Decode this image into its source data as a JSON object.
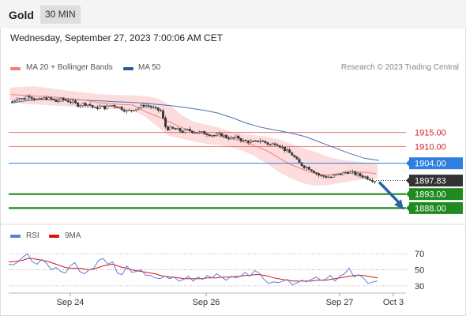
{
  "header": {
    "symbol": "Gold",
    "timeframe": "30 MIN"
  },
  "datetime": "Wednesday, September 27, 2023 7:00:06 AM CET",
  "legend": {
    "bb_label": "MA 20 + Bollinger Bands",
    "ma50_label": "MA 50",
    "rsi_label": "RSI",
    "rsi_ma_label": "9MA",
    "source": "Research © 2023 Trading Central"
  },
  "colors": {
    "bb": "#f08080",
    "bb_fill": "#fbd3d3",
    "ma50": "#4a72b0",
    "resistance": "#e0605a",
    "support": "#1f8a1f",
    "pivot": "#2f7fe0",
    "current": "#333333",
    "arrow": "#2b62a8",
    "rsi": "#5a7fd8",
    "rsi_ma": "#e01010",
    "up_candle": "#ffffff",
    "down_candle": "#333333"
  },
  "chart_data": [
    {
      "type": "candlestick",
      "title": "",
      "y_range": [
        1880.5,
        1935.5
      ],
      "x_labels": [
        "Sep 24",
        "Sep 26",
        "Sep 27",
        "Oct 3"
      ],
      "levels": [
        {
          "label": "1915.00",
          "value": 1915.0,
          "kind": "resistance"
        },
        {
          "label": "1910.00",
          "value": 1910.0,
          "kind": "resistance"
        },
        {
          "label": "1904.00",
          "value": 1904.0,
          "kind": "pivot"
        },
        {
          "label": "1897.83",
          "value": 1897.83,
          "kind": "current"
        },
        {
          "label": "1893.00",
          "value": 1893.0,
          "kind": "support"
        },
        {
          "label": "1888.00",
          "value": 1888.0,
          "kind": "support"
        }
      ],
      "price_path": [
        1926.0,
        1927.5,
        1926.8,
        1928.3,
        1927.0,
        1926.5,
        1927.3,
        1926.8,
        1926.0,
        1926.8,
        1926.3,
        1925.8,
        1924.8,
        1925.3,
        1925.0,
        1923.5,
        1924.3,
        1923.8,
        1924.8,
        1924.3,
        1923.5,
        1922.5,
        1923.3,
        1923.8,
        1924.8,
        1924.3,
        1923.3,
        1922.8,
        1916.5,
        1916.3,
        1916.0,
        1915.3,
        1915.8,
        1915.3,
        1915.0,
        1914.8,
        1914.3,
        1913.8,
        1914.3,
        1913.3,
        1912.8,
        1913.3,
        1912.0,
        1911.8,
        1911.3,
        1912.3,
        1911.5,
        1910.5,
        1911.3,
        1909.8,
        1908.3,
        1907.0,
        1904.5,
        1903.0,
        1902.3,
        1901.0,
        1899.5,
        1899.3,
        1899.0,
        1899.8,
        1900.3,
        1901.0,
        1900.5,
        1899.8,
        1899.3,
        1898.5,
        1897.8
      ],
      "ma20_path": [
        1928.5,
        1928.3,
        1928.0,
        1927.8,
        1927.5,
        1927.0,
        1926.5,
        1925.8,
        1925.3,
        1925.0,
        1924.8,
        1922.5,
        1920.8,
        1918.8,
        1916.8,
        1915.3,
        1914.3,
        1913.8,
        1913.0,
        1911.8,
        1910.3,
        1908.5,
        1906.0,
        1903.5,
        1901.8,
        1900.3,
        1899.8,
        1900.3,
        1900.8,
        1900.8,
        1900.3
      ],
      "ma20_upper": [
        1931.0,
        1931.3,
        1931.5,
        1931.0,
        1930.3,
        1929.8,
        1929.3,
        1928.8,
        1928.5,
        1928.3,
        1928.3,
        1928.0,
        1927.3,
        1925.0,
        1921.3,
        1918.8,
        1917.8,
        1916.8,
        1915.3,
        1914.5,
        1914.0,
        1913.5,
        1912.5,
        1910.8,
        1909.3,
        1908.0,
        1906.3,
        1905.3,
        1904.8,
        1904.3,
        1904.0
      ],
      "ma20_lower": [
        1926.8,
        1925.3,
        1925.0,
        1924.8,
        1924.5,
        1924.3,
        1924.0,
        1923.8,
        1923.5,
        1923.3,
        1922.8,
        1920.8,
        1917.3,
        1913.8,
        1912.8,
        1911.8,
        1911.0,
        1910.5,
        1909.8,
        1908.5,
        1906.5,
        1903.8,
        1900.8,
        1898.5,
        1896.8,
        1896.0,
        1896.3,
        1897.0,
        1897.8,
        1898.3,
        1898.5
      ],
      "ma50_path": [
        1925.5,
        1926.3,
        1926.8,
        1927.0,
        1926.8,
        1926.5,
        1926.3,
        1926.0,
        1925.8,
        1925.5,
        1925.0,
        1924.5,
        1923.8,
        1923.0,
        1922.0,
        1920.3,
        1918.3,
        1916.8,
        1915.8,
        1914.8,
        1913.5,
        1911.5,
        1909.5,
        1907.5,
        1905.8,
        1905.0
      ],
      "projection": {
        "from": 1897.0,
        "to": 1888.0
      }
    },
    {
      "type": "line",
      "title": "",
      "y_ticks": [
        70,
        50,
        30
      ],
      "y_range": [
        20,
        85
      ],
      "series": [
        {
          "name": "RSI",
          "values": [
            57,
            56,
            60,
            66,
            70,
            60,
            57,
            63,
            58,
            50,
            53,
            48,
            46,
            55,
            59,
            48,
            45,
            50,
            52,
            62,
            64,
            57,
            60,
            46,
            44,
            55,
            47,
            48,
            50,
            43,
            43,
            40,
            39,
            42,
            39,
            41,
            36,
            38,
            42,
            36,
            41,
            38,
            43,
            40,
            45,
            41,
            37,
            42,
            40,
            42,
            47,
            42,
            49,
            46,
            38,
            33,
            35,
            34,
            36,
            38,
            31,
            34,
            37,
            35,
            38,
            41,
            37,
            38,
            43,
            36,
            42,
            45,
            52,
            41,
            44,
            40,
            33,
            35,
            36
          ]
        },
        {
          "name": "9MA",
          "values": [
            60,
            60,
            61,
            62,
            64,
            64,
            63,
            62,
            61,
            59,
            57,
            55,
            53,
            52,
            52,
            52,
            51,
            50,
            51,
            53,
            55,
            56,
            57,
            55,
            53,
            52,
            50,
            49,
            48,
            47,
            46,
            45,
            43,
            42,
            41,
            41,
            40,
            39,
            39,
            39,
            39,
            39,
            40,
            40,
            40,
            41,
            41,
            41,
            42,
            42,
            43,
            43,
            44,
            44,
            43,
            42,
            40,
            39,
            38,
            37,
            36,
            36,
            36,
            36,
            36,
            37,
            37,
            37,
            38,
            39,
            40,
            41,
            42,
            43,
            43,
            43,
            42,
            41,
            40
          ]
        }
      ]
    }
  ]
}
